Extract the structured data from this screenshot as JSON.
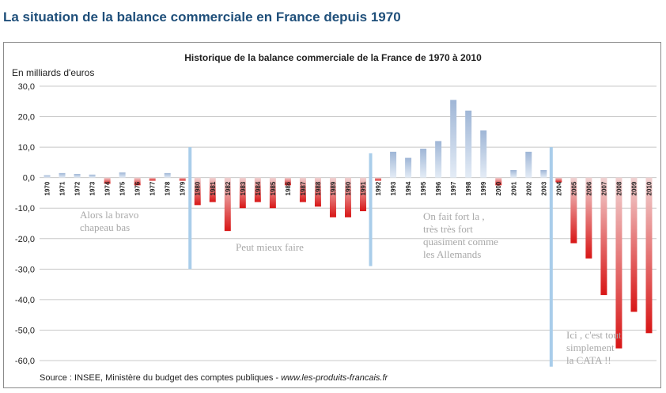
{
  "page": {
    "heading": "La situation de la balance commerciale en France depuis 1970"
  },
  "chart_data": {
    "type": "bar",
    "title": "Historique de la balance commerciale de la France de 1970  à  2010",
    "ylabel": "En milliards d'euros",
    "xlabel": "",
    "ylim": [
      -60,
      30
    ],
    "yticks": [
      "30,0",
      "20,0",
      "10,0",
      "0,0",
      "-10,0",
      "-20,0",
      "-30,0",
      "-40,0",
      "-50,0",
      "-60,0"
    ],
    "grid": true,
    "legend": "none",
    "categories": [
      "1970",
      "1971",
      "1972",
      "1973",
      "1974",
      "1975",
      "1976",
      "1977",
      "1978",
      "1979",
      "1980",
      "1981",
      "1982",
      "1983",
      "1984",
      "1985",
      "1986",
      "1987",
      "1988",
      "1989",
      "1990",
      "1991",
      "1992",
      "1993",
      "1994",
      "1995",
      "1996",
      "1997",
      "1998",
      "1999",
      "2000",
      "2001",
      "2002",
      "2003",
      "2004",
      "2005",
      "2006",
      "2007",
      "2008",
      "2009",
      "2010"
    ],
    "values": [
      0.8,
      1.5,
      1.2,
      1.0,
      -2.0,
      1.7,
      -2.5,
      -1.0,
      1.5,
      -1.0,
      -9.0,
      -8.0,
      -17.5,
      -10.0,
      -8.0,
      -10.0,
      -2.5,
      -8.0,
      -9.5,
      -13.0,
      -13.0,
      -11.0,
      -1.0,
      8.5,
      6.5,
      9.5,
      12.0,
      25.5,
      22.0,
      15.5,
      -2.5,
      2.5,
      8.5,
      2.5,
      -1.5,
      -21.5,
      -26.5,
      -38.5,
      -56.0,
      -44.0,
      -51.0
    ],
    "colors": {
      "positive": "#a8bfdb",
      "negative": "#d61a1a",
      "divider": "#a9cdea",
      "grid": "#c8c8c8"
    },
    "source": "Source :  INSEE, Ministère du budget  des comptes publiques - ",
    "source_site": "www.les-produits-francais.fr",
    "annotations": [
      {
        "lines": [
          "Alors la bravo",
          "chapeau bas"
        ]
      },
      {
        "lines": [
          "Peut mieux faire"
        ]
      },
      {
        "lines": [
          "On fait fort la ,",
          "très très fort",
          "quasiment comme",
          "les Allemands"
        ]
      },
      {
        "lines": [
          "Ici , c'est tout",
          "simplement",
          "la CATA !!"
        ]
      }
    ]
  }
}
